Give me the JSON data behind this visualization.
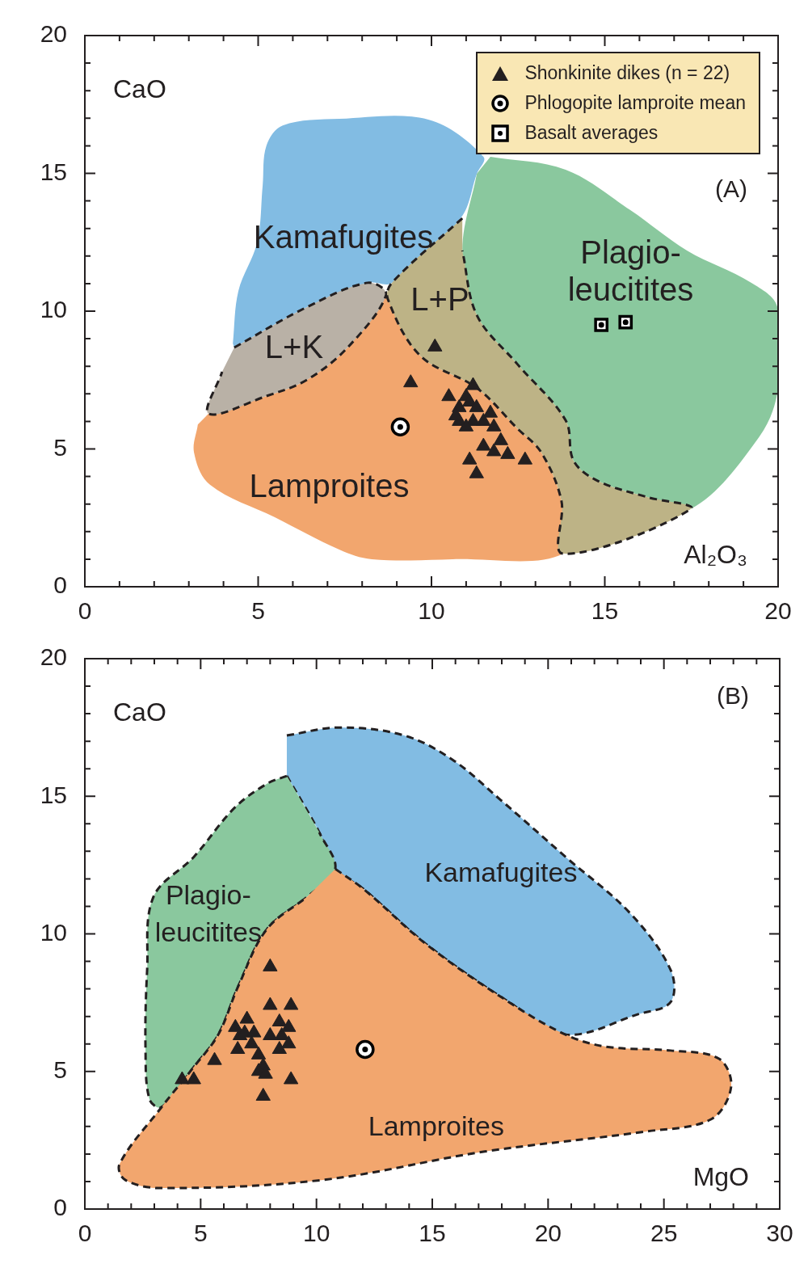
{
  "chart_data": [
    {
      "type": "scatter",
      "xlabel": "Al₂O₃",
      "ylabel": "CaO",
      "xlim": [
        0,
        20
      ],
      "ylim": [
        0,
        20
      ],
      "xticks": [
        0,
        {
          "value": 1,
          "label": null
        },
        {
          "value": 2,
          "label": null
        },
        {
          "value": 3,
          "label": null
        },
        {
          "value": 4,
          "label": null
        },
        5,
        {
          "value": 6,
          "label": null
        },
        {
          "value": 7,
          "label": null
        },
        {
          "value": 8,
          "label": null
        },
        {
          "value": 9,
          "label": null
        },
        10,
        {
          "value": 11,
          "label": null
        },
        {
          "value": 12,
          "label": null
        },
        {
          "value": 13,
          "label": null
        },
        {
          "value": 14,
          "label": null
        },
        15,
        {
          "value": 16,
          "label": null
        },
        {
          "value": 17,
          "label": null
        },
        {
          "value": 18,
          "label": null
        },
        {
          "value": 19,
          "label": null
        },
        20
      ],
      "yticks": [
        0,
        {
          "value": 1,
          "label": null
        },
        {
          "value": 2,
          "label": null
        },
        {
          "value": 3,
          "label": null
        },
        {
          "value": 4,
          "label": null
        },
        5,
        {
          "value": 6,
          "label": null
        },
        {
          "value": 7,
          "label": null
        },
        {
          "value": 8,
          "label": null
        },
        {
          "value": 9,
          "label": null
        },
        10,
        {
          "value": 11,
          "label": null
        },
        {
          "value": 12,
          "label": null
        },
        {
          "value": 13,
          "label": null
        },
        {
          "value": 14,
          "label": null
        },
        15,
        {
          "value": 16,
          "label": null
        },
        {
          "value": 17,
          "label": null
        },
        {
          "value": 18,
          "label": null
        },
        {
          "value": 19,
          "label": null
        },
        20
      ],
      "legend": "top right",
      "series": [
        {
          "type": "area",
          "name": "Kamafugites",
          "color": "#82bce3",
          "x": [
            4.27,
            4.43,
            4.97,
            5.13,
            5.24,
            5.71,
            7.34,
            9.91,
            11.5,
            11.31,
            10.84,
            8.86,
            8.16,
            6.41,
            4.31
          ],
          "values": [
            8.83,
            10.73,
            12.49,
            14.55,
            16.01,
            16.74,
            16.98,
            16.95,
            15.6,
            14.99,
            13.37,
            11.03,
            11.03,
            10.15,
            8.68
          ]
        },
        {
          "type": "area",
          "name": "Plagio-leucitites",
          "color": "#8ac89e",
          "x": [
            11.7,
            13.87,
            15.73,
            17.37,
            19.23,
            19.98,
            20.0,
            19.46,
            17.48,
            16.2,
            14.8,
            14.1,
            13.87,
            12.47,
            11.31,
            10.89,
            11.31
          ],
          "values": [
            15.6,
            15.13,
            13.67,
            12.2,
            11.03,
            10.15,
            7.21,
            5.45,
            2.82,
            3.26,
            3.84,
            4.57,
            6.04,
            8.09,
            9.85,
            12.2,
            14.99
          ]
        },
        {
          "type": "area",
          "name": "Lamproites",
          "color": "#f2a66e",
          "x": [
            3.57,
            5.24,
            6.41,
            7.58,
            8.69,
            8.74,
            9.67,
            11.31,
            12.47,
            13.17,
            13.75,
            13.8,
            10.61,
            8.28,
            7.34,
            5.48,
            3.61,
            3.15,
            3.26
          ],
          "values": [
            6.28,
            6.92,
            7.51,
            8.68,
            10.59,
            10.44,
            8.39,
            7.21,
            5.75,
            4.87,
            3.11,
            1.2,
            1.0,
            1.0,
            1.35,
            2.52,
            3.7,
            4.87,
            5.89
          ]
        },
        {
          "type": "area",
          "name": "L+K",
          "color": "#b9b1a6",
          "line_style": "dashed",
          "x": [
            4.31,
            6.41,
            8.16,
            8.69,
            7.58,
            6.41,
            5.24,
            3.57,
            3.96
          ],
          "values": [
            8.68,
            10.15,
            11.03,
            10.59,
            8.68,
            7.51,
            6.92,
            6.28,
            7.8
          ]
        },
        {
          "type": "area",
          "name": "L+P",
          "color": "#bdb386",
          "line_style": "dashed",
          "x": [
            10.89,
            8.86,
            8.74,
            9.67,
            11.31,
            12.47,
            13.17,
            13.75,
            13.8,
            17.48,
            16.2,
            14.8,
            14.1,
            13.87,
            12.47,
            11.31,
            10.89
          ],
          "values": [
            13.37,
            11.03,
            10.44,
            8.39,
            7.21,
            5.75,
            4.87,
            3.11,
            1.2,
            2.82,
            3.26,
            3.84,
            4.57,
            6.04,
            8.09,
            9.85,
            12.2
          ]
        },
        {
          "type": "scatter",
          "name": "Shonkinite dikes (n = 22)",
          "marker": "triangle",
          "color": "#231f20",
          "x": [
            9.4,
            10.1,
            11.2,
            10.5,
            11.0,
            11.1,
            10.8,
            11.3,
            11.7,
            10.8,
            11.2,
            11.5,
            11.0,
            11.8,
            12.0,
            11.5,
            11.8,
            12.2,
            12.7,
            11.1,
            11.3,
            10.7
          ],
          "values": [
            7.4,
            8.7,
            7.3,
            6.9,
            6.9,
            6.7,
            6.5,
            6.5,
            6.3,
            6.0,
            6.0,
            6.0,
            5.8,
            5.8,
            5.3,
            5.1,
            4.9,
            4.8,
            4.6,
            4.6,
            4.1,
            6.2
          ]
        },
        {
          "type": "scatter",
          "name": "Phlogopite lamproite mean",
          "marker": "circle",
          "color": "#000000",
          "x": [
            9.1
          ],
          "values": [
            5.8
          ]
        },
        {
          "type": "scatter",
          "name": "Basalt averages",
          "marker": "square",
          "color": "#000000",
          "x": [
            14.9,
            15.6
          ],
          "values": [
            9.5,
            9.6
          ]
        }
      ],
      "annotations": [
        "(A)"
      ]
    },
    {
      "type": "scatter",
      "xlabel": "MgO",
      "ylabel": "CaO",
      "xlim": [
        0,
        30
      ],
      "ylim": [
        0,
        20
      ],
      "xticks": [
        0,
        {
          "value": 1,
          "label": null
        },
        {
          "value": 2,
          "label": null
        },
        {
          "value": 3,
          "label": null
        },
        {
          "value": 4,
          "label": null
        },
        5,
        {
          "value": 6,
          "label": null
        },
        {
          "value": 7,
          "label": null
        },
        {
          "value": 8,
          "label": null
        },
        {
          "value": 9,
          "label": null
        },
        10,
        {
          "value": 11,
          "label": null
        },
        {
          "value": 12,
          "label": null
        },
        {
          "value": 13,
          "label": null
        },
        {
          "value": 14,
          "label": null
        },
        15,
        {
          "value": 16,
          "label": null
        },
        {
          "value": 17,
          "label": null
        },
        {
          "value": 18,
          "label": null
        },
        {
          "value": 19,
          "label": null
        },
        20,
        {
          "value": 21,
          "label": null
        },
        {
          "value": 22,
          "label": null
        },
        {
          "value": 23,
          "label": null
        },
        {
          "value": 24,
          "label": null
        },
        25,
        {
          "value": 26,
          "label": null
        },
        {
          "value": 27,
          "label": null
        },
        {
          "value": 28,
          "label": null
        },
        {
          "value": 29,
          "label": null
        },
        30
      ],
      "yticks": [
        0,
        {
          "value": 1,
          "label": null
        },
        {
          "value": 2,
          "label": null
        },
        {
          "value": 3,
          "label": null
        },
        {
          "value": 4,
          "label": null
        },
        5,
        {
          "value": 6,
          "label": null
        },
        {
          "value": 7,
          "label": null
        },
        {
          "value": 8,
          "label": null
        },
        {
          "value": 9,
          "label": null
        },
        10,
        {
          "value": 11,
          "label": null
        },
        {
          "value": 12,
          "label": null
        },
        {
          "value": 13,
          "label": null
        },
        {
          "value": 14,
          "label": null
        },
        15,
        {
          "value": 16,
          "label": null
        },
        {
          "value": 17,
          "label": null
        },
        {
          "value": 18,
          "label": null
        },
        {
          "value": 19,
          "label": null
        },
        20
      ],
      "series": [
        {
          "type": "area",
          "name": "Kamafugites",
          "color": "#82bce3",
          "line_style": "dashed",
          "x": [
            8.72,
            10.99,
            13.78,
            15.87,
            17.96,
            20.75,
            23.54,
            25.29,
            25.29,
            23.89,
            20.75,
            18.31,
            14.82,
            12.03,
            10.81,
            10.12,
            8.72
          ],
          "values": [
            17.21,
            17.5,
            17.21,
            16.33,
            14.86,
            12.8,
            10.75,
            8.69,
            7.52,
            7.08,
            6.34,
            7.52,
            9.57,
            11.63,
            12.36,
            13.69,
            15.74
          ]
        },
        {
          "type": "area",
          "name": "Plagio-leucitites",
          "color": "#8ac89e",
          "line_style": "dashed",
          "x": [
            8.72,
            7.85,
            6.45,
            4.71,
            2.96,
            2.69,
            2.62,
            2.79,
            3.31,
            4.71,
            5.76,
            6.63,
            7.85,
            9.59,
            10.81,
            10.12
          ],
          "values": [
            15.74,
            15.45,
            14.57,
            12.8,
            11.34,
            8.69,
            5.76,
            3.99,
            3.7,
            5.17,
            6.34,
            8.11,
            10.16,
            11.34,
            12.36,
            13.69
          ]
        },
        {
          "type": "area",
          "name": "Lamproites",
          "color": "#f2a66e",
          "line_style": "dashed",
          "x": [
            10.81,
            12.03,
            14.82,
            18.31,
            20.75,
            22.5,
            25.29,
            27.38,
            27.9,
            27.03,
            24.24,
            17.27,
            10.29,
            3.31,
            1.74,
            1.5,
            3.31,
            4.71,
            5.76,
            6.63,
            7.85,
            9.59
          ],
          "values": [
            12.36,
            11.63,
            9.57,
            7.52,
            6.34,
            5.9,
            5.76,
            5.46,
            4.43,
            3.26,
            2.82,
            2.09,
            1.06,
            0.76,
            1.06,
            1.64,
            3.7,
            5.17,
            6.34,
            8.11,
            10.16,
            11.34
          ]
        },
        {
          "type": "scatter",
          "marker": "triangle",
          "color": "#231f20",
          "x": [
            4.2,
            4.7,
            5.6,
            6.5,
            7.0,
            6.7,
            6.9,
            7.3,
            6.6,
            7.2,
            7.5,
            7.7,
            7.5,
            7.8,
            7.7,
            8.0,
            8.0,
            8.4,
            8.0,
            8.5,
            8.8,
            8.9,
            8.8,
            8.4,
            8.9
          ],
          "values": [
            4.7,
            4.7,
            5.4,
            6.6,
            6.9,
            6.3,
            6.4,
            6.4,
            5.8,
            6.0,
            5.6,
            5.2,
            5.0,
            4.9,
            4.1,
            8.8,
            7.4,
            6.8,
            6.3,
            6.3,
            6.6,
            7.4,
            6.0,
            5.8,
            4.7
          ]
        },
        {
          "type": "scatter",
          "marker": "circle",
          "color": "#000000",
          "x": [
            12.1
          ],
          "values": [
            5.8
          ]
        }
      ],
      "annotations": [
        "(B)"
      ]
    }
  ]
}
